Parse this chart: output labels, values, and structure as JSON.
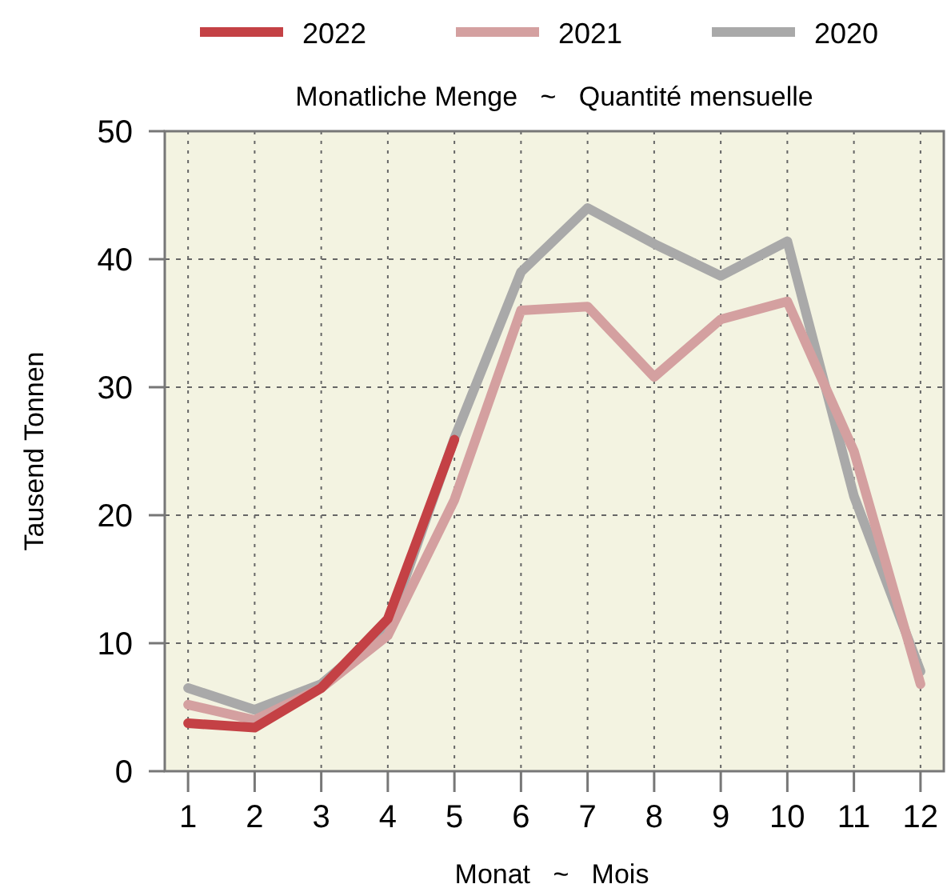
{
  "chart_data": {
    "type": "line",
    "title": "Monatliche Menge   ~   Quantité mensuelle",
    "xlabel": "Monat   ~   Mois",
    "ylabel": "Tausend Tonnen",
    "x": [
      1,
      2,
      3,
      4,
      5,
      6,
      7,
      8,
      9,
      10,
      11,
      12
    ],
    "xlim": [
      0.65,
      12.35
    ],
    "xticks": [
      1,
      2,
      3,
      4,
      5,
      6,
      7,
      8,
      9,
      10,
      11,
      12
    ],
    "ylim": [
      0,
      50
    ],
    "yticks": [
      0,
      10,
      20,
      30,
      40,
      50
    ],
    "grid": true,
    "legend": "top",
    "line_style": "solid",
    "marker": "none",
    "series": [
      {
        "name": "2020",
        "color": "#a9a9a9",
        "values": [
          6.5,
          4.8,
          6.8,
          11.2,
          26,
          39,
          44,
          41.2,
          38.7,
          41.4,
          21.5,
          7.8
        ]
      },
      {
        "name": "2021",
        "color": "#d4a0a0",
        "values": [
          5.2,
          4,
          6.5,
          10.6,
          21.2,
          36,
          36.3,
          30.8,
          35.3,
          36.7,
          25,
          6.8
        ]
      },
      {
        "name": "2022",
        "color": "#c44145",
        "values": [
          3.75,
          3.4,
          6.5,
          11.9,
          25.9,
          null,
          null,
          null,
          null,
          null,
          null,
          null
        ]
      }
    ]
  }
}
